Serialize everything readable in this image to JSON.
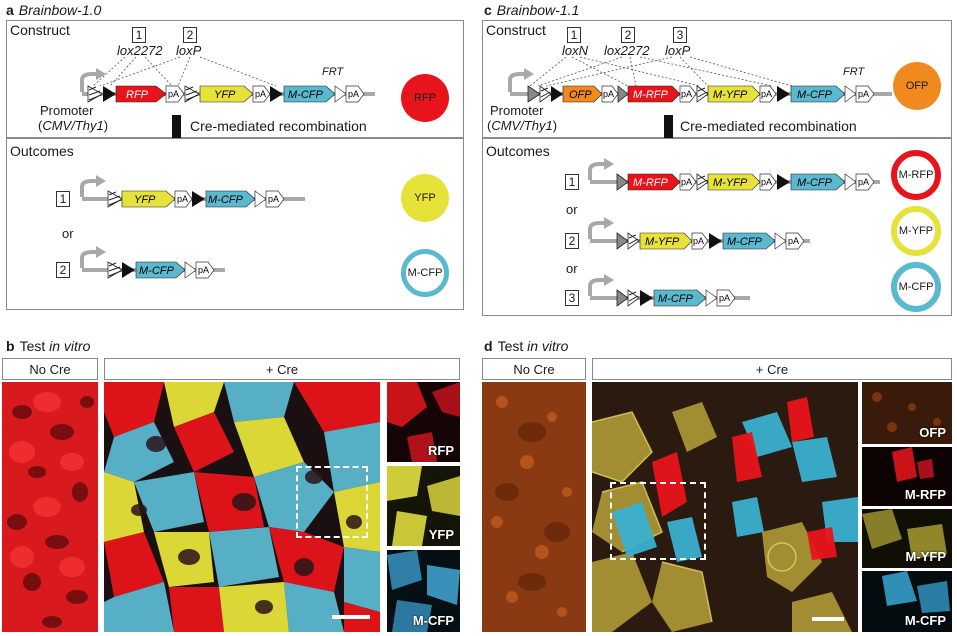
{
  "panel_a": {
    "letter": "a",
    "title": "Brainbow-1.0",
    "construct_label": "Construct",
    "outcomes_label": "Outcomes",
    "site1_num": "1",
    "site1_name": "lox2272",
    "site2_num": "2",
    "site2_name": "loxP",
    "frt": "FRT",
    "promoter_line1": "Promoter",
    "promoter_line2": "(CMV/Thy1)",
    "genes": [
      "RFP",
      "YFP",
      "M-CFP"
    ],
    "pa": "pA",
    "recomb": "Cre-mediated recombination",
    "or": "or",
    "outcome1": {
      "num": "1",
      "genes": [
        "YFP",
        "M-CFP"
      ]
    },
    "outcome2": {
      "num": "2",
      "genes": [
        "M-CFP"
      ]
    },
    "circles": [
      "RFP",
      "YFP",
      "M-CFP"
    ]
  },
  "panel_c": {
    "letter": "c",
    "title": "Brainbow-1.1",
    "construct_label": "Construct",
    "outcomes_label": "Outcomes",
    "site1_num": "1",
    "site1_name": "loxN",
    "site2_num": "2",
    "site2_name": "lox2272",
    "site3_num": "3",
    "site3_name": "loxP",
    "frt": "FRT",
    "promoter_line1": "Promoter",
    "promoter_line2": "(CMV/Thy1)",
    "genes": [
      "OFP",
      "M-RFP",
      "M-YFP",
      "M-CFP"
    ],
    "pa": "pA",
    "recomb": "Cre-mediated recombination",
    "or": "or",
    "outcome1": {
      "num": "1",
      "genes": [
        "M-RFP",
        "M-YFP",
        "M-CFP"
      ]
    },
    "outcome2": {
      "num": "2",
      "genes": [
        "M-YFP",
        "M-CFP"
      ]
    },
    "outcome3": {
      "num": "3",
      "genes": [
        "M-CFP"
      ]
    },
    "circles": [
      "OFP",
      "M-RFP",
      "M-YFP",
      "M-CFP"
    ]
  },
  "panel_b": {
    "letter": "b",
    "title_prefix": "Test",
    "title_italic": "in vitro",
    "no_cre": "No Cre",
    "plus_cre": "+ Cre",
    "thumbs": [
      "RFP",
      "YFP",
      "M-CFP"
    ]
  },
  "panel_d": {
    "letter": "d",
    "title_prefix": "Test",
    "title_italic": "in vitro",
    "no_cre": "No Cre",
    "plus_cre": "+ Cre",
    "thumbs": [
      "OFP",
      "M-RFP",
      "M-YFP",
      "M-CFP"
    ]
  },
  "colors": {
    "red": "#e8141b",
    "yellow": "#e6e23a",
    "cyan": "#5ab8cf",
    "orange": "#f08a1e",
    "grey": "#a8a8a8",
    "border": "#8a8a8a"
  }
}
